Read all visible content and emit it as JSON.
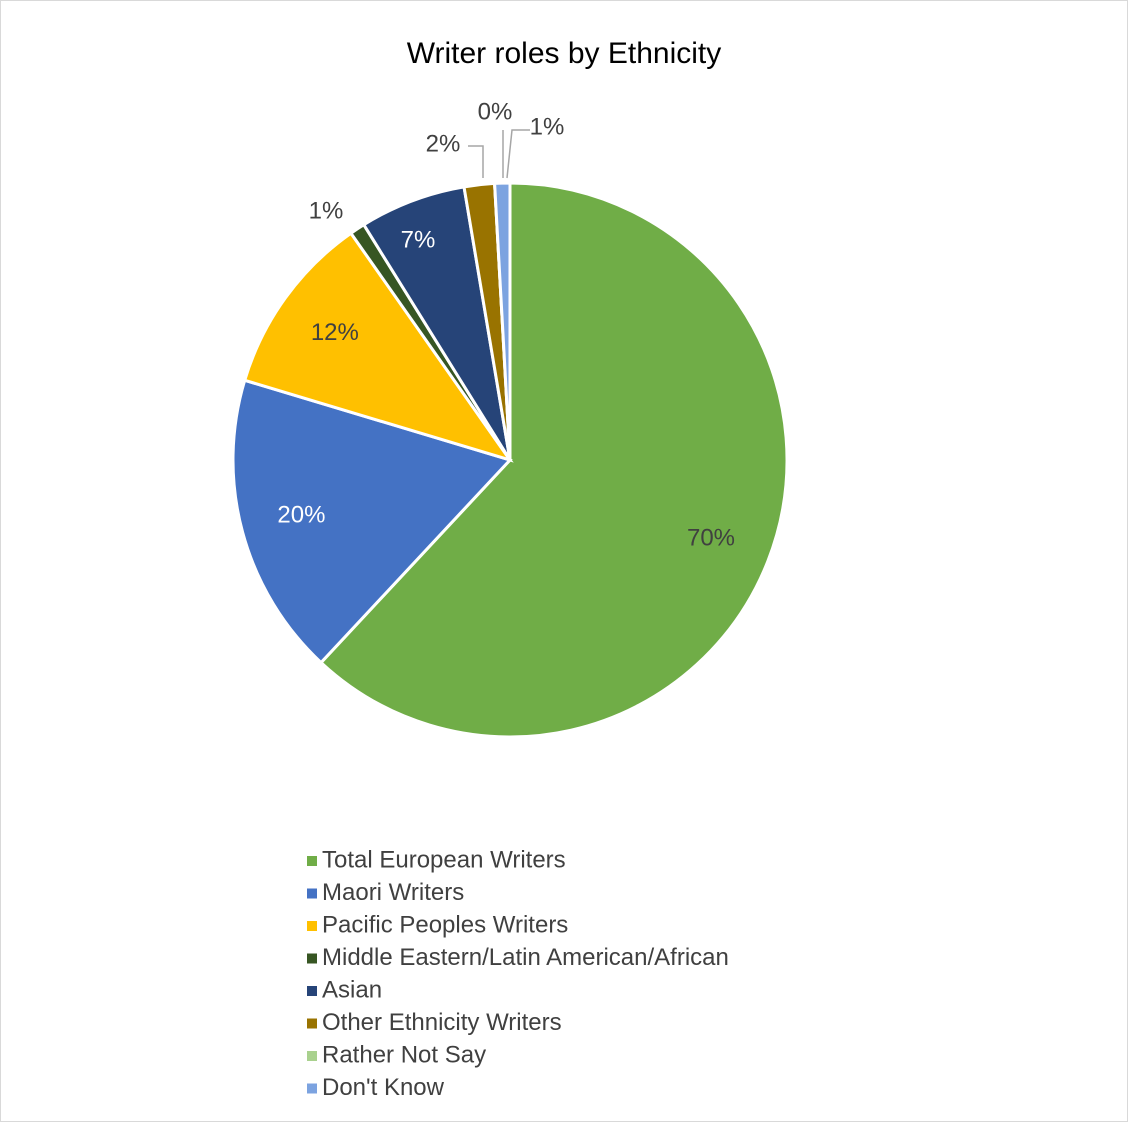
{
  "chart_data": {
    "type": "pie",
    "title": "Writer roles by Ethnicity",
    "categories": [
      "Total European Writers",
      "Maori Writers",
      "Pacific Peoples Writers",
      "Middle Eastern/Latin American/African",
      "Asian",
      "Other Ethnicity Writers",
      "Rather Not Say",
      "Don't Know"
    ],
    "values": [
      70,
      20,
      12,
      1,
      7,
      2,
      0,
      1
    ],
    "value_labels": [
      "70%",
      "20%",
      "12%",
      "1%",
      "7%",
      "2%",
      "0%",
      "1%"
    ],
    "colors": [
      "#70ad47",
      "#4472c4",
      "#ffc000",
      "#375623",
      "#264478",
      "#997300",
      "#a9d18e",
      "#7ca3e0"
    ],
    "legend": "bottom"
  }
}
